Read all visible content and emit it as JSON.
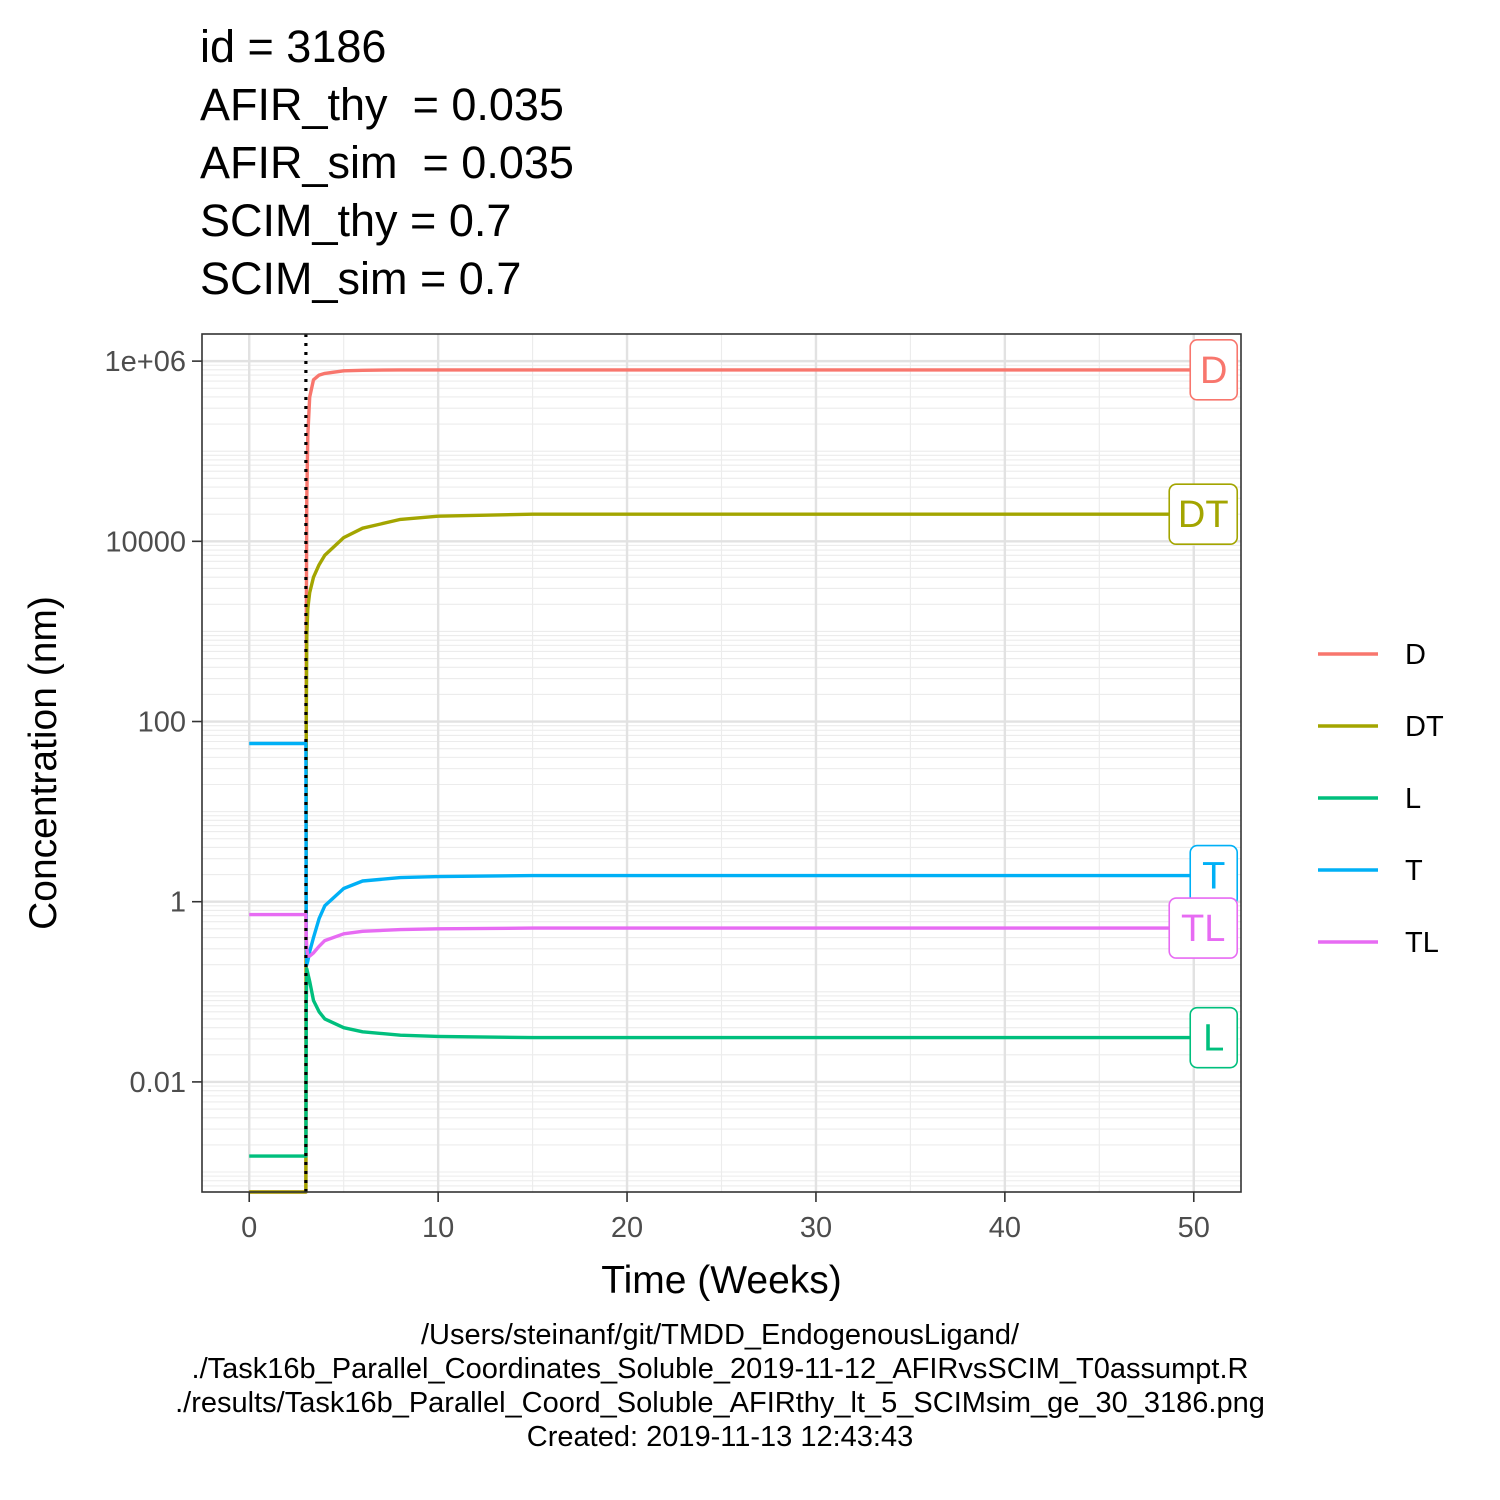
{
  "title_lines": [
    "id = 3186",
    "AFIR_thy  = 0.035",
    "AFIR_sim  = 0.035",
    "SCIM_thy = 0.7",
    "SCIM_sim = 0.7"
  ],
  "caption_lines": [
    "/Users/steinanf/git/TMDD_EndogenousLigand/",
    "./Task16b_Parallel_Coordinates_Soluble_2019-11-12_AFIRvsSCIM_T0assumpt.R",
    "./results/Task16b_Parallel_Coord_Soluble_AFIRthy_lt_5_SCIMsim_ge_30_3186.png",
    "Created: 2019-11-13 12:43:43"
  ],
  "chart_data": {
    "type": "line",
    "xlabel": "Time (Weeks)",
    "ylabel": "Concentration (nm)",
    "y_scale": "log10",
    "xlim": [
      -2.5,
      52.5
    ],
    "ylim": [
      0.0006,
      2000000
    ],
    "x_ticks": [
      0,
      10,
      20,
      30,
      40,
      50
    ],
    "x_tick_labels": [
      "0",
      "10",
      "20",
      "30",
      "40",
      "50"
    ],
    "y_ticks": [
      0.01,
      1,
      100,
      10000,
      1000000
    ],
    "y_tick_labels": [
      "0.01",
      "1",
      "100",
      "10000",
      "1e+06"
    ],
    "grid": true,
    "dose_time": 3,
    "legend_position": "right",
    "series": [
      {
        "name": "D",
        "color": "#F8766D",
        "x": [
          0,
          3,
          3.02,
          3.05,
          3.1,
          3.2,
          3.4,
          3.7,
          4,
          5,
          6,
          8,
          10,
          15,
          20,
          30,
          40,
          50
        ],
        "y": [
          0,
          0,
          1000,
          30000,
          150000,
          400000,
          620000,
          700000,
          730000,
          780000,
          790000,
          800000,
          800000,
          800000,
          800000,
          800000,
          800000,
          800000
        ]
      },
      {
        "name": "DT",
        "color": "#A3A500",
        "x": [
          0,
          3,
          3.02,
          3.05,
          3.1,
          3.2,
          3.4,
          3.7,
          4,
          5,
          6,
          8,
          10,
          15,
          20,
          30,
          40,
          50
        ],
        "y": [
          0,
          0,
          100,
          900,
          1800,
          2700,
          4000,
          5500,
          7000,
          11000,
          14000,
          17500,
          19000,
          20000,
          20000,
          20000,
          20000,
          20000
        ]
      },
      {
        "name": "L",
        "color": "#00BF7D",
        "x": [
          0,
          3,
          3.02,
          3.05,
          3.1,
          3.2,
          3.4,
          3.7,
          4,
          5,
          6,
          8,
          10,
          15,
          20,
          30,
          40,
          50
        ],
        "y": [
          0.0015,
          0.0015,
          0.08,
          0.18,
          0.16,
          0.13,
          0.08,
          0.06,
          0.05,
          0.04,
          0.036,
          0.033,
          0.032,
          0.031,
          0.031,
          0.031,
          0.031,
          0.031
        ]
      },
      {
        "name": "T",
        "color": "#00B0F6",
        "x": [
          0,
          3,
          3.02,
          3.05,
          3.1,
          3.2,
          3.4,
          3.7,
          4,
          5,
          6,
          8,
          10,
          15,
          20,
          30,
          40,
          50
        ],
        "y": [
          57,
          57,
          0.3,
          0.2,
          0.22,
          0.28,
          0.4,
          0.65,
          0.9,
          1.4,
          1.7,
          1.85,
          1.9,
          1.95,
          1.95,
          1.95,
          1.95,
          1.95
        ]
      },
      {
        "name": "TL",
        "color": "#E76BF3",
        "x": [
          0,
          3,
          3.02,
          3.05,
          3.1,
          3.2,
          3.4,
          3.7,
          4,
          5,
          6,
          8,
          10,
          15,
          20,
          30,
          40,
          50
        ],
        "y": [
          0.72,
          0.72,
          0.4,
          0.3,
          0.25,
          0.25,
          0.27,
          0.32,
          0.37,
          0.44,
          0.47,
          0.49,
          0.5,
          0.51,
          0.51,
          0.51,
          0.51,
          0.51
        ]
      }
    ]
  }
}
